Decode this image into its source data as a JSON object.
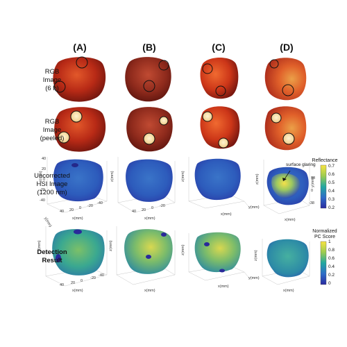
{
  "columns": [
    "(A)",
    "(B)",
    "(C)",
    "(D)"
  ],
  "rows": {
    "rgb": [
      "RGB",
      "Image",
      "(6 h)"
    ],
    "peeled": [
      "RGB",
      "Image",
      "(peeled)"
    ],
    "hsi": [
      "Uncorrected",
      "HSI Image",
      "(1200 nm)"
    ],
    "detection": [
      "Detection",
      "Result"
    ]
  },
  "axes": {
    "x_label": "x(mm)",
    "y_label": "y(mm)",
    "z_label": "z(mm)",
    "x_ticks": [
      "40",
      "20",
      "0",
      "-20",
      "-40"
    ],
    "z_ticks": [
      "40",
      "20",
      "0",
      "-20",
      "-40"
    ],
    "y_ticks": [
      "20",
      "0",
      "-20",
      "-40"
    ],
    "side_ticks": [
      "38",
      "0",
      "-38"
    ]
  },
  "reflectance_colorbar": {
    "title": "Reflectance",
    "ticks": [
      "0.7",
      "0.6",
      "0.5",
      "0.4",
      "0.3",
      "0.2"
    ]
  },
  "pc_colorbar": {
    "title_lines": [
      "Normalized",
      "PC Score"
    ],
    "ticks": [
      "1",
      "0.8",
      "0.6",
      "0.4",
      "0.2",
      "0"
    ]
  },
  "annotation": "surface glaring",
  "colors": {
    "apple_dark": "#8a1a12",
    "apple_red": "#c8321a",
    "apple_light": "#e2582a",
    "apple_yellow": "#e8a040",
    "hsi_blue": "#2d4fb8",
    "hsi_teal": "#22a0a0",
    "hsi_yellow": "#f4e04a"
  }
}
